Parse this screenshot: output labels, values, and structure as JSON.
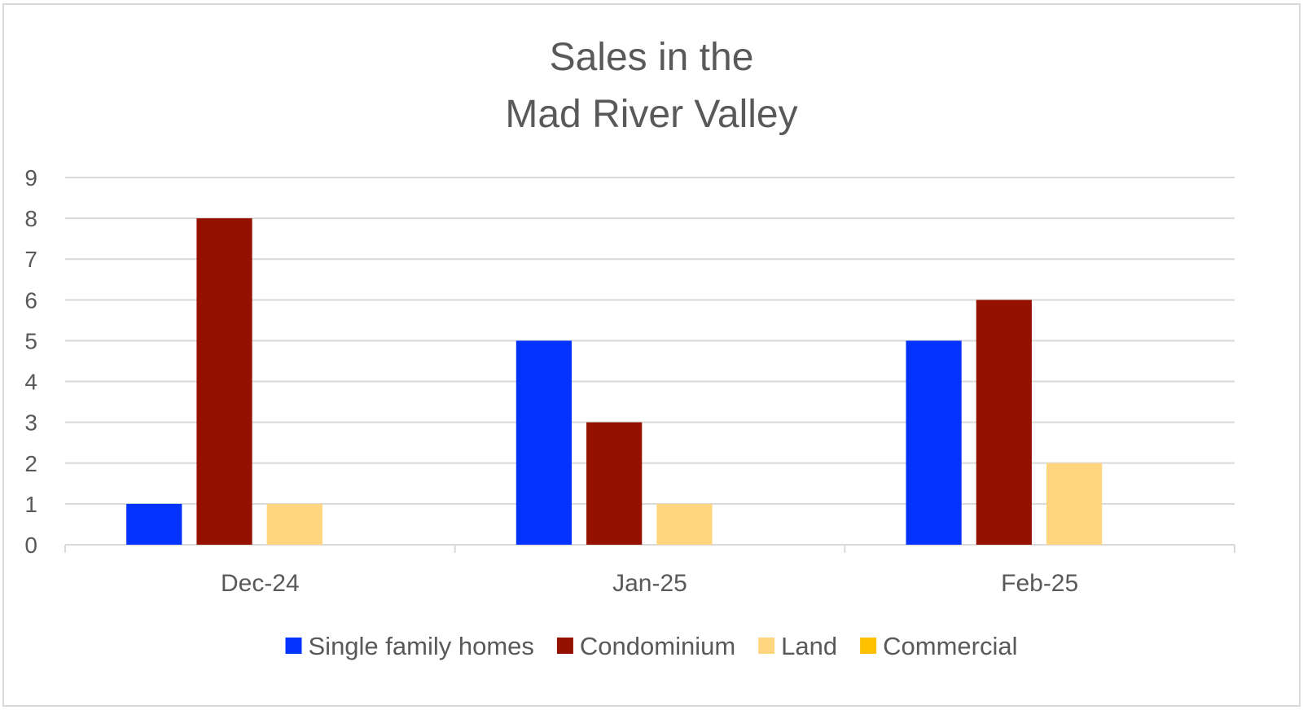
{
  "chart_data": {
    "type": "bar",
    "title_lines": [
      "Sales in the",
      "Mad River Valley"
    ],
    "categories": [
      "Dec-24",
      "Jan-25",
      "Feb-25"
    ],
    "series": [
      {
        "name": "Single family homes",
        "color": "#0433ff",
        "values": [
          1,
          5,
          5
        ]
      },
      {
        "name": "Condominium",
        "color": "#941100",
        "values": [
          8,
          3,
          6
        ]
      },
      {
        "name": "Land",
        "color": "#ffd57f",
        "values": [
          1,
          1,
          2
        ]
      },
      {
        "name": "Commercial",
        "color": "#ffc000",
        "values": [
          0,
          0,
          0
        ]
      }
    ],
    "y_ticks": [
      "0",
      "1",
      "2",
      "3",
      "4",
      "5",
      "6",
      "7",
      "8",
      "9"
    ],
    "ylim": [
      0,
      9
    ],
    "grid": true,
    "legend_position": "bottom"
  }
}
